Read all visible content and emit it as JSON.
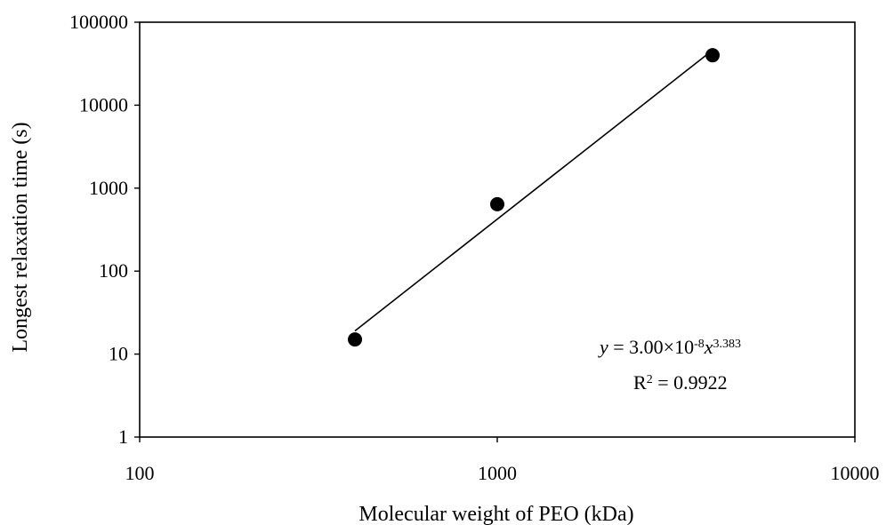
{
  "chart_data": {
    "type": "scatter",
    "title": "",
    "xlabel": "Molecular weight of PEO (kDa)",
    "ylabel": "Longest relaxation time (s)",
    "x_scale": "log",
    "y_scale": "log",
    "xlim": [
      100,
      10000
    ],
    "ylim": [
      1,
      100000
    ],
    "x_ticks": [
      "100",
      "1000",
      "10000"
    ],
    "y_ticks": [
      "1",
      "10",
      "100",
      "1000",
      "10000",
      "100000"
    ],
    "grid": false,
    "legend": "none",
    "series": [
      {
        "points": [
          {
            "x": 400,
            "y": 15
          },
          {
            "x": 1000,
            "y": 640
          },
          {
            "x": 4000,
            "y": 40000
          }
        ]
      }
    ],
    "fit": {
      "type": "power",
      "coefficient": 3e-08,
      "exponent": 3.383,
      "x_range": [
        400,
        4000
      ]
    },
    "annotation": {
      "equation_y": "y",
      "equation_eq": " = 3.00×10",
      "equation_exp10": "-8",
      "equation_x": "x",
      "equation_exp": "3.383",
      "r2_r": "R",
      "r2_sup": "2",
      "r2_rest": " = 0.9922"
    },
    "colors": {
      "marker": "#000000",
      "line": "#000000",
      "axis": "#000000"
    }
  }
}
